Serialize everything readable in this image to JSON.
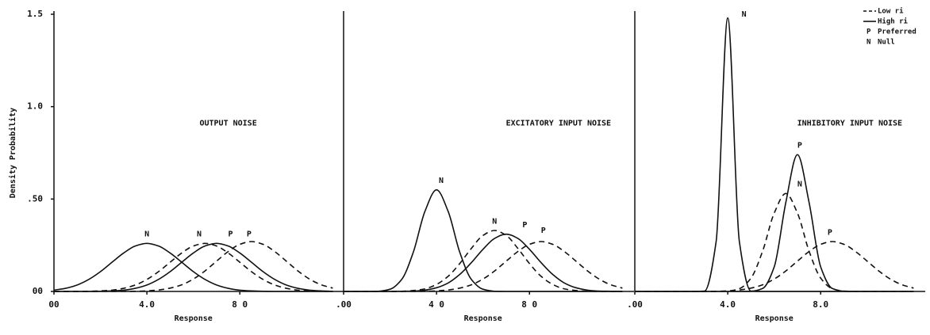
{
  "chart_data": [
    {
      "type": "line",
      "title": "OUTPUT NOISE",
      "xlabel": "Response",
      "ylabel": "Density Probability",
      "x": [
        0,
        0.5,
        1,
        1.5,
        2,
        2.5,
        3,
        3.5,
        4,
        4.5,
        5,
        5.5,
        6,
        6.5,
        7,
        7.5,
        8,
        8.5,
        9,
        9.5,
        10,
        10.5,
        11,
        11.5,
        12
      ],
      "xlim": [
        0,
        12.5
      ],
      "ylim": [
        0,
        1.5
      ],
      "xticks": [
        {
          "value": 0,
          "label": "00"
        },
        {
          "value": 4,
          "label": "4.0"
        },
        {
          "value": 8,
          "label": "8 0"
        }
      ],
      "yticks": [
        {
          "value": 0,
          "label": "00"
        },
        {
          "value": 0.5,
          "label": ".50"
        },
        {
          "value": 1,
          "label": "1.0"
        },
        {
          "value": 1.5,
          "label": "1.5"
        }
      ],
      "series": [
        {
          "color": "#111111",
          "dash": false,
          "values": [
            0.007,
            0.017,
            0.035,
            0.065,
            0.107,
            0.158,
            0.208,
            0.246,
            0.26,
            0.246,
            0.208,
            0.158,
            0.107,
            0.065,
            0.035,
            0.017,
            0.007,
            0.003,
            0.001,
            0,
            0,
            0,
            0,
            0,
            0
          ]
        },
        {
          "color": "#111111",
          "dash": false,
          "values": [
            0,
            0,
            0,
            0,
            0.001,
            0.003,
            0.007,
            0.017,
            0.035,
            0.065,
            0.107,
            0.158,
            0.208,
            0.246,
            0.26,
            0.246,
            0.208,
            0.158,
            0.107,
            0.065,
            0.035,
            0.017,
            0.007,
            0.003,
            0.001
          ]
        },
        {
          "color": "#111111",
          "dash": true,
          "values": [
            0,
            0,
            0,
            0.001,
            0.003,
            0.007,
            0.017,
            0.035,
            0.065,
            0.107,
            0.158,
            0.208,
            0.246,
            0.26,
            0.246,
            0.208,
            0.158,
            0.107,
            0.065,
            0.035,
            0.017,
            0.007,
            0.003,
            0.001,
            0
          ]
        },
        {
          "color": "#111111",
          "dash": true,
          "values": [
            0,
            0,
            0,
            0,
            0,
            0,
            0,
            0.001,
            0.003,
            0.008,
            0.018,
            0.036,
            0.067,
            0.111,
            0.164,
            0.216,
            0.255,
            0.27,
            0.255,
            0.216,
            0.164,
            0.111,
            0.067,
            0.036,
            0.018
          ]
        }
      ],
      "annotations": [
        {
          "text": "N",
          "x": 4.0,
          "y": 0.31
        },
        {
          "text": "N",
          "x": 6.25,
          "y": 0.31
        },
        {
          "text": "P",
          "x": 7.6,
          "y": 0.31
        },
        {
          "text": "P",
          "x": 8.4,
          "y": 0.31
        }
      ]
    },
    {
      "type": "line",
      "title": "EXCITATORY INPUT NOISE",
      "xlabel": "Response",
      "x": [
        0,
        0.5,
        1,
        1.5,
        2,
        2.5,
        3,
        3.5,
        4,
        4.5,
        5,
        5.5,
        6,
        6.5,
        7,
        7.5,
        8,
        8.5,
        9,
        9.5,
        10,
        10.5,
        11,
        11.5,
        12
      ],
      "xlim": [
        0,
        12.5
      ],
      "ylim": [
        0,
        1.5
      ],
      "xticks": [
        {
          "value": 0,
          "label": ".00"
        },
        {
          "value": 4,
          "label": "4 0"
        },
        {
          "value": 8,
          "label": "8 0"
        }
      ],
      "series": [
        {
          "color": "#111111",
          "dash": false,
          "values": [
            0,
            0,
            0,
            0.001,
            0.012,
            0.065,
            0.212,
            0.433,
            0.55,
            0.433,
            0.212,
            0.065,
            0.012,
            0.001,
            0,
            0,
            0,
            0,
            0,
            0,
            0,
            0,
            0,
            0,
            0
          ]
        },
        {
          "color": "#111111",
          "dash": true,
          "values": [
            0,
            0,
            0,
            0,
            0,
            0.001,
            0.005,
            0.014,
            0.038,
            0.082,
            0.151,
            0.233,
            0.303,
            0.33,
            0.303,
            0.233,
            0.151,
            0.082,
            0.038,
            0.014,
            0.005,
            0.001,
            0,
            0,
            0
          ]
        },
        {
          "color": "#111111",
          "dash": false,
          "values": [
            0,
            0,
            0,
            0,
            0,
            0.001,
            0.002,
            0.007,
            0.02,
            0.046,
            0.092,
            0.156,
            0.228,
            0.287,
            0.31,
            0.287,
            0.228,
            0.156,
            0.092,
            0.046,
            0.02,
            0.007,
            0.002,
            0.001,
            0
          ]
        },
        {
          "color": "#111111",
          "dash": true,
          "values": [
            0,
            0,
            0,
            0,
            0,
            0,
            0,
            0.001,
            0.003,
            0.008,
            0.018,
            0.036,
            0.067,
            0.111,
            0.164,
            0.216,
            0.255,
            0.27,
            0.255,
            0.216,
            0.164,
            0.111,
            0.067,
            0.036,
            0.018
          ]
        }
      ],
      "annotations": [
        {
          "text": "N",
          "x": 4.2,
          "y": 0.6
        },
        {
          "text": "N",
          "x": 6.5,
          "y": 0.38
        },
        {
          "text": "P",
          "x": 7.8,
          "y": 0.36
        },
        {
          "text": "P",
          "x": 8.6,
          "y": 0.33
        }
      ]
    },
    {
      "type": "line",
      "title": "INHIBITORY INPUT NOISE",
      "xlabel": "Response",
      "x": [
        0,
        0.5,
        1,
        1.5,
        2,
        2.5,
        3,
        3.5,
        4,
        4.5,
        5,
        5.5,
        6,
        6.5,
        7,
        7.5,
        8,
        8.5,
        9,
        9.5,
        10,
        10.5,
        11,
        11.5,
        12
      ],
      "xlim": [
        0,
        12.5
      ],
      "ylim": [
        0,
        1.5
      ],
      "xticks": [
        {
          "value": 0,
          "label": ".00"
        },
        {
          "value": 4,
          "label": "4.0"
        },
        {
          "value": 8,
          "label": "8.0"
        }
      ],
      "series": [
        {
          "color": "#111111",
          "dash": false,
          "values": [
            0,
            0,
            0,
            0,
            0,
            0,
            0.002,
            0.27,
            1.48,
            0.27,
            0.002,
            0,
            0,
            0,
            0,
            0,
            0,
            0,
            0,
            0,
            0,
            0,
            0,
            0,
            0
          ]
        },
        {
          "color": "#111111",
          "dash": false,
          "values": [
            0,
            0,
            0,
            0,
            0,
            0,
            0,
            0,
            0,
            0,
            0.001,
            0.016,
            0.133,
            0.482,
            0.74,
            0.482,
            0.133,
            0.016,
            0.001,
            0,
            0,
            0,
            0,
            0,
            0
          ]
        },
        {
          "color": "#111111",
          "dash": true,
          "values": [
            0,
            0,
            0,
            0,
            0,
            0,
            0,
            0,
            0.002,
            0.015,
            0.072,
            0.218,
            0.424,
            0.53,
            0.424,
            0.218,
            0.072,
            0.015,
            0.002,
            0,
            0,
            0,
            0,
            0,
            0
          ]
        },
        {
          "color": "#111111",
          "dash": true,
          "values": [
            0,
            0,
            0,
            0,
            0,
            0,
            0,
            0.001,
            0.003,
            0.008,
            0.018,
            0.036,
            0.067,
            0.111,
            0.164,
            0.216,
            0.255,
            0.27,
            0.255,
            0.216,
            0.164,
            0.111,
            0.067,
            0.036,
            0.018
          ]
        }
      ],
      "annotations": [
        {
          "text": "N",
          "x": 4.7,
          "y": 1.5
        },
        {
          "text": "P",
          "x": 7.1,
          "y": 0.79
        },
        {
          "text": "N",
          "x": 7.1,
          "y": 0.58
        },
        {
          "text": "P",
          "x": 8.4,
          "y": 0.32
        }
      ],
      "legend": [
        {
          "label": "Low ri",
          "dash": true
        },
        {
          "label": "High ri",
          "dash": false
        },
        {
          "key": "P",
          "label": "Preferred"
        },
        {
          "key": "N",
          "label": "Null"
        }
      ]
    }
  ]
}
